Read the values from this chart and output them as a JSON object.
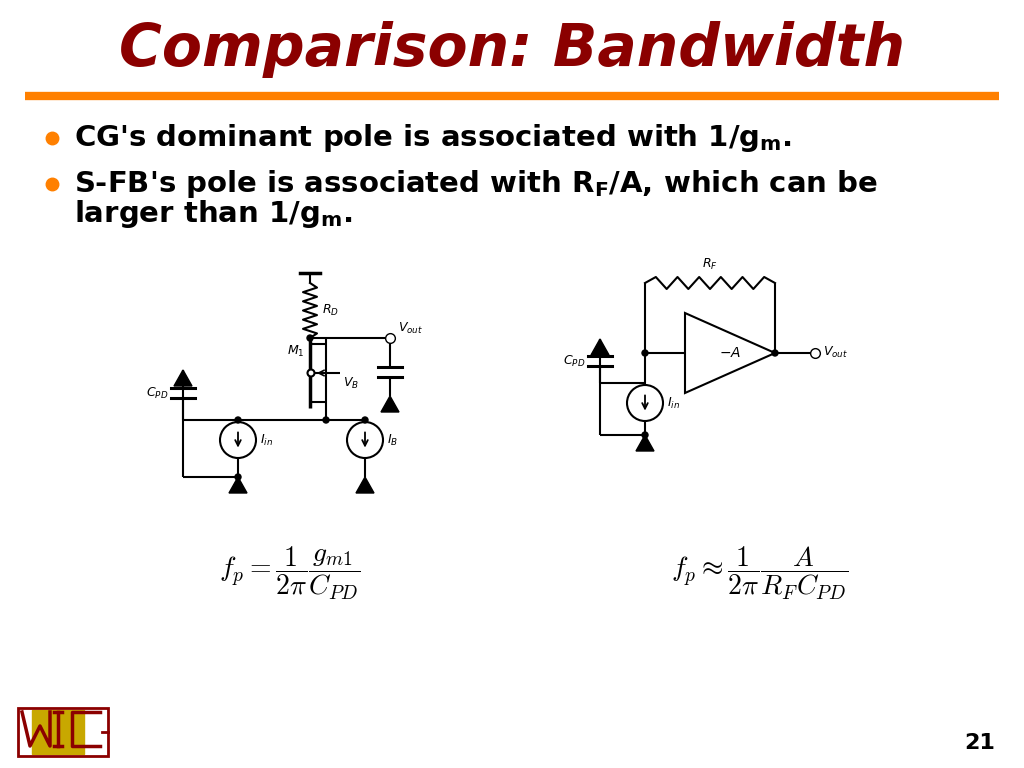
{
  "title": "Comparison: Bandwidth",
  "title_color": "#8B0000",
  "title_fontsize": 42,
  "separator_color": "#FF8000",
  "bullet_color": "#FF8000",
  "bg_color": "#FFFFFF",
  "slide_number": "21",
  "logo_dark": "#8B0000",
  "logo_gold": "#C8A800"
}
